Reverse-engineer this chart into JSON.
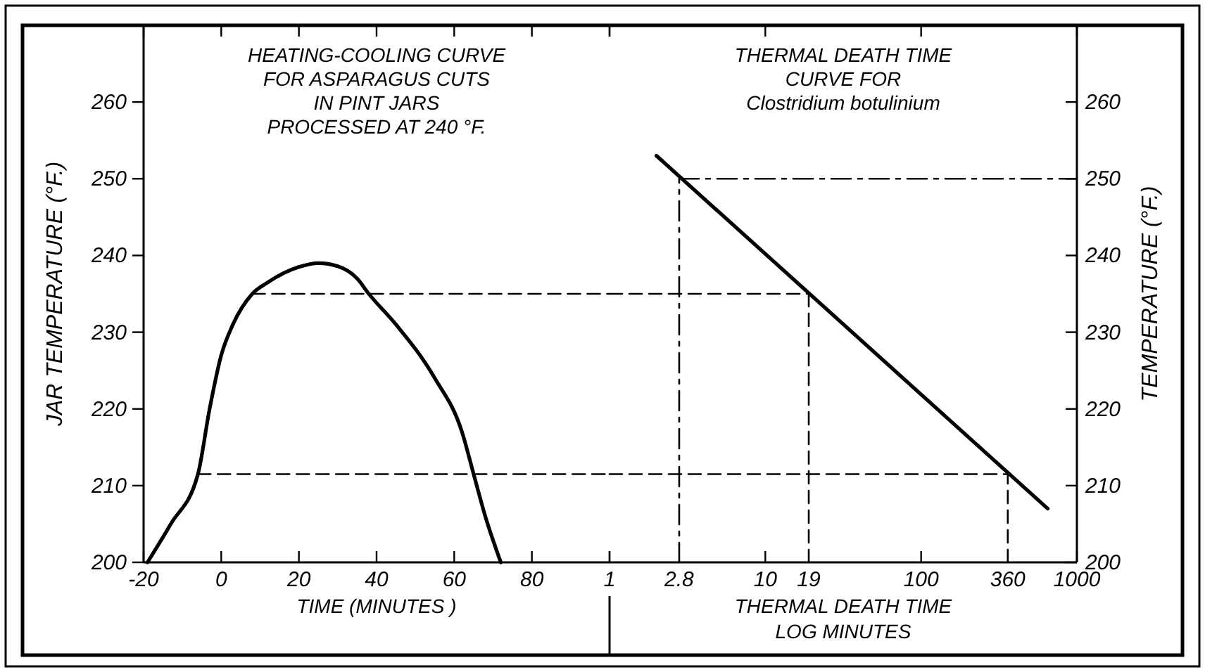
{
  "chart_data": [
    {
      "type": "line",
      "title": "HEATING-COOLING CURVE\nFOR ASPARAGUS CUTS\nIN PINT JARS\nPROCESSED AT 240 °F.",
      "xlabel": "TIME (MINUTES )",
      "ylabel": "JAR TEMPERATURE (°F.)",
      "xlim": [
        -20,
        100
      ],
      "xticks": [
        -20,
        0,
        20,
        40,
        60,
        80,
        {
          "value": 100,
          "label": null
        }
      ],
      "ylim": [
        200,
        270
      ],
      "yticks": [
        200,
        210,
        220,
        230,
        240,
        250,
        260
      ],
      "series": [
        {
          "color": "#000000",
          "line_style": "solid",
          "x": [
            -19,
            -13,
            -6,
            -3,
            0,
            3,
            8,
            12,
            20,
            25,
            30,
            35,
            38,
            45,
            55,
            62,
            65,
            68,
            72
          ],
          "values": [
            200,
            205,
            211.5,
            220,
            227,
            231,
            235,
            236.5,
            238.5,
            239,
            238.6,
            237,
            235,
            231,
            224,
            217,
            211.5,
            206,
            200
          ]
        },
        {
          "color": "#000000",
          "line_style": "dashed",
          "x": [
            8,
            100
          ],
          "values": [
            235,
            235
          ]
        },
        {
          "color": "#000000",
          "line_style": "dashed",
          "x": [
            -6,
            100
          ],
          "values": [
            211.5,
            211.5
          ]
        }
      ]
    },
    {
      "type": "line",
      "title": "THERMAL DEATH TIME\nCURVE FOR\nClostridium botulinium",
      "xlabel": "THERMAL DEATH TIME\nLOG MINUTES",
      "y2label": "TEMPERATURE (°F.)",
      "log": "x",
      "xlim": [
        1,
        1000
      ],
      "xticks": [
        1,
        2.8,
        10,
        19,
        100,
        360,
        1000
      ],
      "y2lim": [
        200,
        270
      ],
      "y2ticks": [
        200,
        210,
        220,
        230,
        240,
        250,
        260
      ],
      "series": [
        {
          "color": "#000000",
          "line_style": "solid",
          "axis": "y2",
          "x": [
            2,
            650
          ],
          "values": [
            253,
            207
          ]
        },
        {
          "color": "#000000",
          "line_style": "dashed",
          "axis": "y2",
          "x": [
            1,
            19
          ],
          "values": [
            235,
            235
          ]
        },
        {
          "color": "#000000",
          "line_style": "dashed",
          "axis": "y2",
          "x": [
            1,
            360
          ],
          "values": [
            211.5,
            211.5
          ]
        },
        {
          "color": "#000000",
          "line_style": "dotted",
          "axis": "y2",
          "x": [
            2.8,
            1000
          ],
          "values": [
            250,
            250
          ]
        },
        {
          "color": "#000000",
          "line_style": "dotted",
          "axis": "y2",
          "x": [
            2.8,
            2.8
          ],
          "values": [
            200,
            250
          ]
        },
        {
          "color": "#000000",
          "line_style": "dashed",
          "axis": "y2",
          "x": [
            19,
            19
          ],
          "values": [
            200,
            235
          ]
        },
        {
          "color": "#000000",
          "line_style": "dashed",
          "axis": "y2",
          "x": [
            360,
            360
          ],
          "values": [
            200,
            211.5
          ]
        }
      ]
    }
  ]
}
